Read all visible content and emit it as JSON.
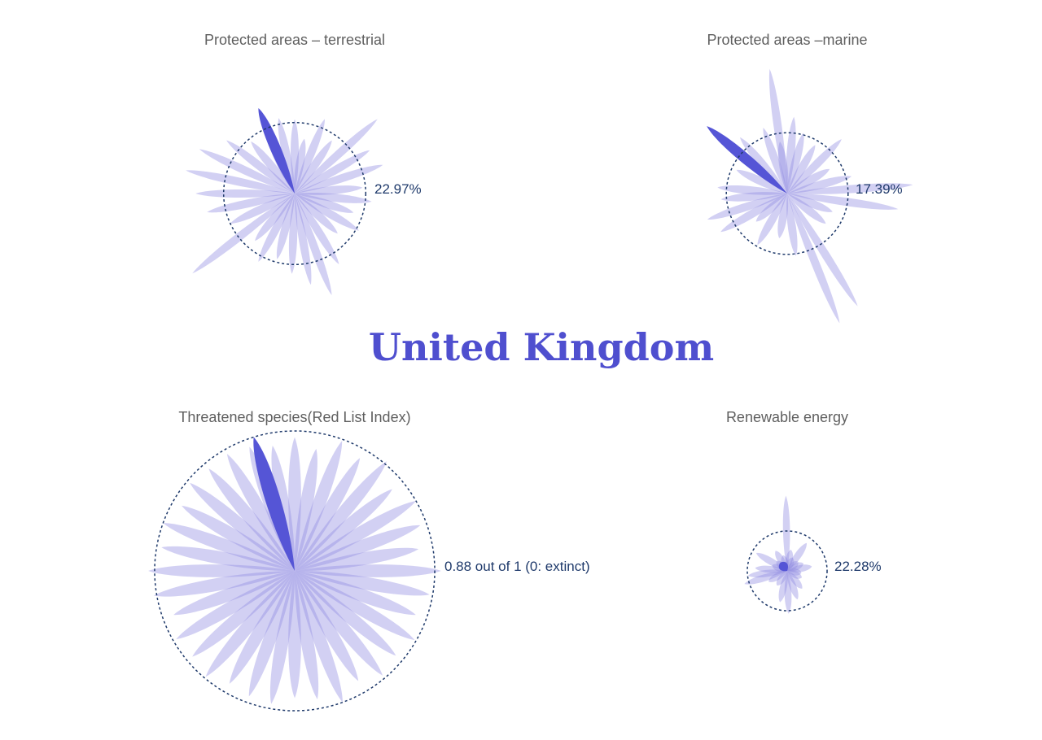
{
  "page": {
    "country": "United Kingdom",
    "colors": {
      "petal": "#8f8ae0",
      "highlight": "#5555d6",
      "circle": "#1f3a6b",
      "title": "#4f4fcf",
      "label": "#5f5f5f"
    }
  },
  "chart_data": [
    {
      "type": "radial-petal",
      "title": "Protected areas – terrestrial",
      "value": 22.97,
      "value_label": "22.97%",
      "reference_circle": 22.97,
      "highlight": {
        "angle_deg": -23,
        "value": 30
      },
      "petals": [
        {
          "angle_deg": 0,
          "value": 24
        },
        {
          "angle_deg": 10,
          "value": 18
        },
        {
          "angle_deg": 22,
          "value": 26
        },
        {
          "angle_deg": 35,
          "value": 21
        },
        {
          "angle_deg": 48,
          "value": 36
        },
        {
          "angle_deg": 60,
          "value": 28
        },
        {
          "angle_deg": 72,
          "value": 30
        },
        {
          "angle_deg": 85,
          "value": 22
        },
        {
          "angle_deg": 96,
          "value": 25
        },
        {
          "angle_deg": 108,
          "value": 20
        },
        {
          "angle_deg": 120,
          "value": 24
        },
        {
          "angle_deg": 133,
          "value": 19
        },
        {
          "angle_deg": 148,
          "value": 27
        },
        {
          "angle_deg": 160,
          "value": 35
        },
        {
          "angle_deg": 170,
          "value": 30
        },
        {
          "angle_deg": 182,
          "value": 26
        },
        {
          "angle_deg": 195,
          "value": 22
        },
        {
          "angle_deg": 208,
          "value": 25
        },
        {
          "angle_deg": 220,
          "value": 20
        },
        {
          "angle_deg": 232,
          "value": 42
        },
        {
          "angle_deg": 245,
          "value": 23
        },
        {
          "angle_deg": 258,
          "value": 29
        },
        {
          "angle_deg": 270,
          "value": 32
        },
        {
          "angle_deg": 282,
          "value": 36
        },
        {
          "angle_deg": 295,
          "value": 34
        },
        {
          "angle_deg": 308,
          "value": 28
        },
        {
          "angle_deg": 320,
          "value": 22
        },
        {
          "angle_deg": 335,
          "value": 21
        },
        {
          "angle_deg": 348,
          "value": 25
        }
      ]
    },
    {
      "type": "radial-petal",
      "title": "Protected areas –marine",
      "value": 17.39,
      "value_label": "17.39%",
      "reference_circle": 17.39,
      "highlight": {
        "angle_deg": -50,
        "value": 30
      },
      "petals": [
        {
          "angle_deg": -8,
          "value": 36
        },
        {
          "angle_deg": 5,
          "value": 22
        },
        {
          "angle_deg": 15,
          "value": 18
        },
        {
          "angle_deg": 30,
          "value": 16
        },
        {
          "angle_deg": 45,
          "value": 22
        },
        {
          "angle_deg": 60,
          "value": 14
        },
        {
          "angle_deg": 75,
          "value": 19
        },
        {
          "angle_deg": 86,
          "value": 36
        },
        {
          "angle_deg": 98,
          "value": 32
        },
        {
          "angle_deg": 112,
          "value": 14
        },
        {
          "angle_deg": 128,
          "value": 14
        },
        {
          "angle_deg": 148,
          "value": 38
        },
        {
          "angle_deg": 158,
          "value": 40
        },
        {
          "angle_deg": 172,
          "value": 18
        },
        {
          "angle_deg": 190,
          "value": 13
        },
        {
          "angle_deg": 210,
          "value": 17
        },
        {
          "angle_deg": 228,
          "value": 12
        },
        {
          "angle_deg": 240,
          "value": 22
        },
        {
          "angle_deg": 252,
          "value": 24
        },
        {
          "angle_deg": 265,
          "value": 19
        },
        {
          "angle_deg": 275,
          "value": 20
        },
        {
          "angle_deg": 295,
          "value": 16
        },
        {
          "angle_deg": 320,
          "value": 21
        },
        {
          "angle_deg": 340,
          "value": 20
        },
        {
          "angle_deg": 352,
          "value": 15
        }
      ]
    },
    {
      "type": "radial-petal",
      "title": "Threatened species(Red List Index)",
      "value": 0.88,
      "value_label": "0.88 out of 1 (0: extinct)",
      "reference_circle": 0.88,
      "highlight": {
        "angle_deg": -17,
        "value": 0.88
      },
      "petals": [
        {
          "angle_deg": 0,
          "value": 0.84
        },
        {
          "angle_deg": 10,
          "value": 0.78
        },
        {
          "angle_deg": 20,
          "value": 0.87
        },
        {
          "angle_deg": 30,
          "value": 0.82
        },
        {
          "angle_deg": 40,
          "value": 0.9
        },
        {
          "angle_deg": 50,
          "value": 0.8
        },
        {
          "angle_deg": 60,
          "value": 0.88
        },
        {
          "angle_deg": 70,
          "value": 0.84
        },
        {
          "angle_deg": 80,
          "value": 0.79
        },
        {
          "angle_deg": 90,
          "value": 0.92
        },
        {
          "angle_deg": 100,
          "value": 0.86
        },
        {
          "angle_deg": 110,
          "value": 0.81
        },
        {
          "angle_deg": 120,
          "value": 0.87
        },
        {
          "angle_deg": 130,
          "value": 0.83
        },
        {
          "angle_deg": 140,
          "value": 0.86
        },
        {
          "angle_deg": 150,
          "value": 0.8
        },
        {
          "angle_deg": 160,
          "value": 0.88
        },
        {
          "angle_deg": 170,
          "value": 0.82
        },
        {
          "angle_deg": 180,
          "value": 0.8
        },
        {
          "angle_deg": 190,
          "value": 0.85
        },
        {
          "angle_deg": 200,
          "value": 0.84
        },
        {
          "angle_deg": 210,
          "value": 0.82
        },
        {
          "angle_deg": 220,
          "value": 0.87
        },
        {
          "angle_deg": 230,
          "value": 0.84
        },
        {
          "angle_deg": 240,
          "value": 0.86
        },
        {
          "angle_deg": 250,
          "value": 0.81
        },
        {
          "angle_deg": 260,
          "value": 0.9
        },
        {
          "angle_deg": 270,
          "value": 0.92
        },
        {
          "angle_deg": 280,
          "value": 0.85
        },
        {
          "angle_deg": 290,
          "value": 0.88
        },
        {
          "angle_deg": 300,
          "value": 0.82
        },
        {
          "angle_deg": 310,
          "value": 0.86
        },
        {
          "angle_deg": 320,
          "value": 0.84
        },
        {
          "angle_deg": 330,
          "value": 0.85
        },
        {
          "angle_deg": 340,
          "value": 0.83
        },
        {
          "angle_deg": 350,
          "value": 0.8
        }
      ]
    },
    {
      "type": "radial-petal",
      "title": "Renewable energy",
      "value": 22.28,
      "value_label": "22.28%",
      "reference_circle": 22.28,
      "highlight": {
        "angle_deg": -40,
        "value": 6
      },
      "petals": [
        {
          "angle_deg": -1,
          "value": 42
        },
        {
          "angle_deg": 10,
          "value": 12
        },
        {
          "angle_deg": 22,
          "value": 8
        },
        {
          "angle_deg": 35,
          "value": 19
        },
        {
          "angle_deg": 50,
          "value": 8
        },
        {
          "angle_deg": 65,
          "value": 10
        },
        {
          "angle_deg": 80,
          "value": 14
        },
        {
          "angle_deg": 98,
          "value": 8
        },
        {
          "angle_deg": 115,
          "value": 9
        },
        {
          "angle_deg": 140,
          "value": 13
        },
        {
          "angle_deg": 160,
          "value": 17
        },
        {
          "angle_deg": 178,
          "value": 24
        },
        {
          "angle_deg": 193,
          "value": 18
        },
        {
          "angle_deg": 215,
          "value": 10
        },
        {
          "angle_deg": 240,
          "value": 12
        },
        {
          "angle_deg": 253,
          "value": 25
        },
        {
          "angle_deg": 263,
          "value": 22
        },
        {
          "angle_deg": 275,
          "value": 18
        },
        {
          "angle_deg": 290,
          "value": 9
        },
        {
          "angle_deg": 300,
          "value": 20
        },
        {
          "angle_deg": 312,
          "value": 8
        },
        {
          "angle_deg": 330,
          "value": 13
        },
        {
          "angle_deg": 345,
          "value": 9
        }
      ]
    }
  ]
}
